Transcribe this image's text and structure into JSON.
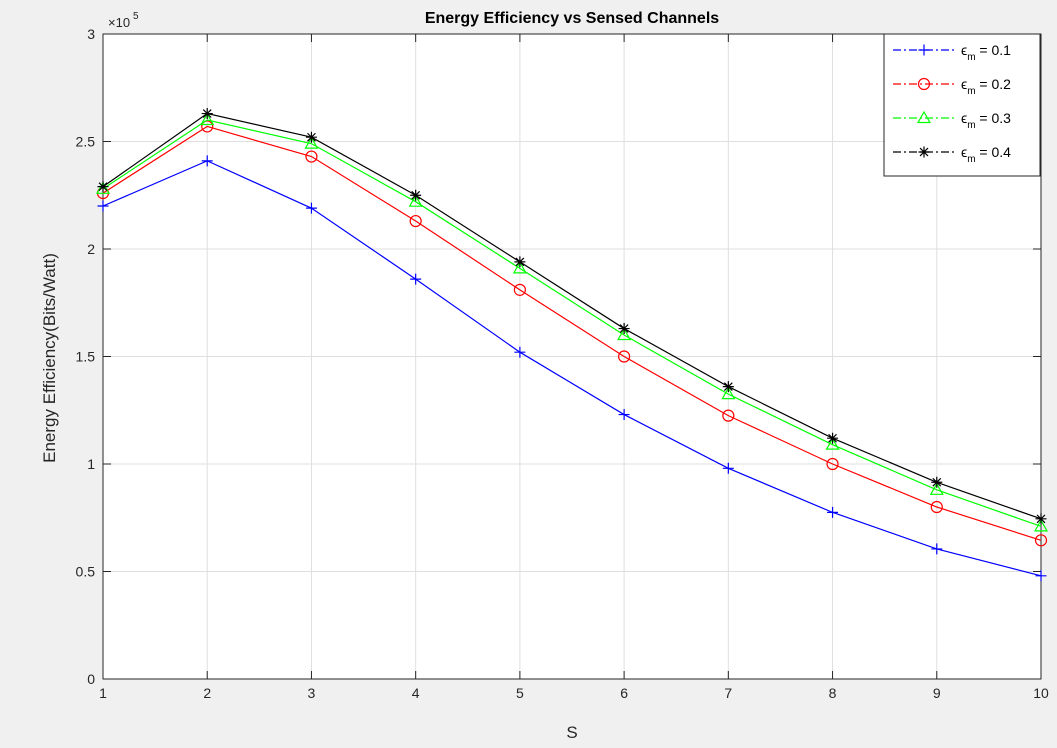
{
  "chart_data": {
    "type": "line",
    "title": "Energy Efficiency vs Sensed Channels",
    "xlabel": "S",
    "ylabel": "Energy Efficiency(Bits/Watt)",
    "y_exponent_label": "5",
    "x": [
      1,
      2,
      3,
      4,
      5,
      6,
      7,
      8,
      9,
      10
    ],
    "xlim": [
      1,
      10
    ],
    "ylim": [
      0,
      300000
    ],
    "x_ticks": [
      1,
      2,
      3,
      4,
      5,
      6,
      7,
      8,
      9,
      10
    ],
    "y_ticks": [
      0,
      50000,
      100000,
      150000,
      200000,
      250000,
      300000
    ],
    "y_tick_labels": [
      "0",
      "0.5",
      "1",
      "1.5",
      "2",
      "2.5",
      "3"
    ],
    "grid": true,
    "legend_position": "top-right",
    "series": [
      {
        "name": "m = 0.1",
        "symbol": "ϵ",
        "subscript": "m",
        "value_text": " = 0.1",
        "color": "#0000ff",
        "marker": "plus",
        "values": [
          220000,
          241000,
          219000,
          186000,
          152000,
          123000,
          98000,
          77500,
          60500,
          48000
        ]
      },
      {
        "name": "m = 0.2",
        "symbol": "ϵ",
        "subscript": "m",
        "value_text": " = 0.2",
        "color": "#ff0000",
        "marker": "circle",
        "values": [
          226000,
          257000,
          243000,
          213000,
          181000,
          150000,
          122500,
          100000,
          80000,
          64500
        ]
      },
      {
        "name": "m = 0.3",
        "symbol": "ϵ",
        "subscript": "m",
        "value_text": " = 0.3",
        "color": "#00ff00",
        "marker": "triangle",
        "values": [
          228000,
          260000,
          249000,
          222000,
          191000,
          160000,
          132500,
          109000,
          88000,
          71000
        ]
      },
      {
        "name": "m = 0.4",
        "symbol": "ϵ",
        "subscript": "m",
        "value_text": " = 0.4",
        "color": "#000000",
        "marker": "star",
        "values": [
          229000,
          263000,
          252000,
          225000,
          194000,
          163000,
          136000,
          112000,
          91500,
          74500
        ]
      }
    ]
  }
}
